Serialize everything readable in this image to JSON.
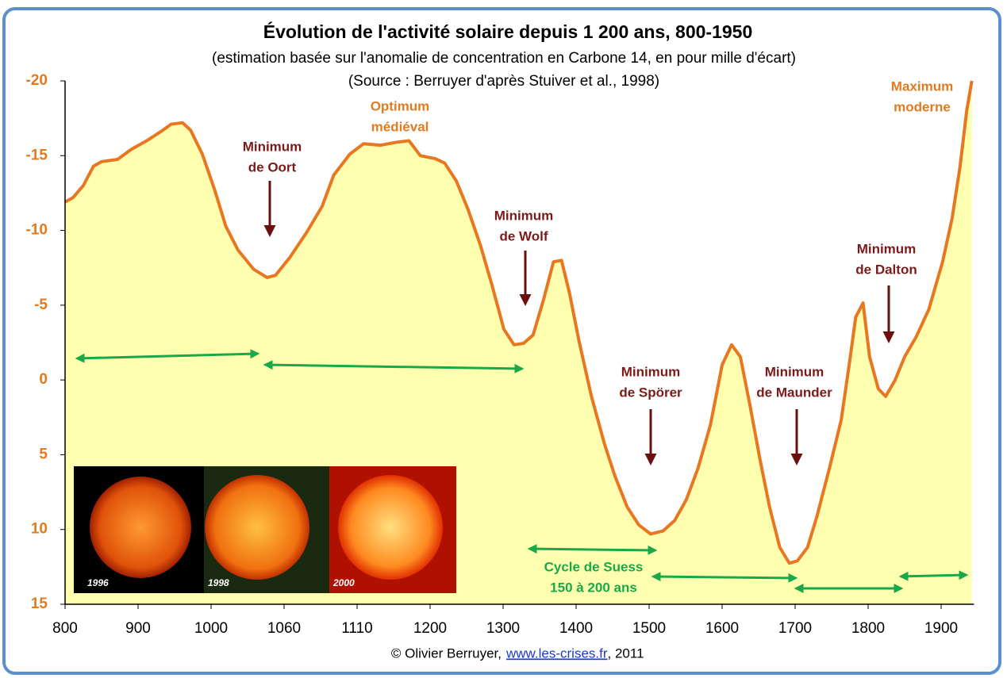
{
  "chart_data": {
    "type": "area",
    "title": "Évolution de l'activité solaire depuis 1 200 ans, 800-1950",
    "subtitle": "(estimation basée sur l'anomalie de concentration en Carbone 14, en pour mille d'écart)",
    "source": "(Source : Berruyer d'après Stuiver et al., 1998)",
    "x": [
      800,
      811,
      825,
      839,
      850,
      872,
      890,
      912,
      934,
      945,
      961,
      972,
      988,
      1003,
      1012,
      1022,
      1035,
      1046,
      1053,
      1064,
      1075,
      1086,
      1094,
      1105,
      1118,
      1139,
      1159,
      1174,
      1188,
      1207,
      1220,
      1236,
      1252,
      1269,
      1285,
      1301,
      1315,
      1328,
      1341,
      1355,
      1369,
      1380,
      1391,
      1404,
      1421,
      1439,
      1453,
      1470,
      1486,
      1502,
      1519,
      1535,
      1551,
      1567,
      1584,
      1600,
      1613,
      1625,
      1638,
      1652,
      1665,
      1679,
      1692,
      1703,
      1717,
      1730,
      1747,
      1763,
      1774,
      1783,
      1793,
      1802,
      1814,
      1824,
      1837,
      1850,
      1866,
      1883,
      1902,
      1915,
      1926,
      1935,
      1942
    ],
    "series": [
      {
        "color": "#e87722",
        "fill": "#ffffb0",
        "values": [
          -11.9,
          -12.2,
          -13,
          -14.3,
          -14.6,
          -14.75,
          -15.4,
          -16,
          -16.7,
          -17.1,
          -17.2,
          -16.7,
          -15.1,
          -12.7,
          -10.3,
          -8.7,
          -7.4,
          -6.85,
          -7,
          -8.2,
          -9.8,
          -11.6,
          -13.7,
          -15.1,
          -15.8,
          -15.7,
          -15.9,
          -16,
          -15,
          -14.8,
          -14.5,
          -13.3,
          -11.4,
          -9,
          -6.3,
          -3.4,
          -2.35,
          -2.45,
          -3,
          -5.3,
          -7.9,
          -8,
          -5.8,
          -2.6,
          1.1,
          4.3,
          6.4,
          8.5,
          9.7,
          10.3,
          10.1,
          9.4,
          8,
          5.9,
          3,
          -1,
          -2.35,
          -1.55,
          1.65,
          5.35,
          8.5,
          11.2,
          12.25,
          12.1,
          11.2,
          9.1,
          5.9,
          2.7,
          -1,
          -4.2,
          -5.15,
          -1.55,
          0.6,
          1.1,
          0,
          -1.55,
          -2.9,
          -4.7,
          -7.9,
          -10.8,
          -14.3,
          -18,
          -20
        ]
      }
    ],
    "xlim": [
      800,
      1945
    ],
    "xticks": [
      800,
      900,
      1000,
      1060,
      1110,
      1200,
      1300,
      1400,
      1500,
      1600,
      1700,
      1800,
      1900
    ],
    "ylim": [
      -20,
      15
    ],
    "y_inverted": true,
    "yticks": [
      -20,
      -15,
      -10,
      -5,
      0,
      5,
      10,
      15
    ],
    "annotations": [
      {
        "lines": [
          "Minimum",
          "de Oort"
        ],
        "color": "#7b1a1a"
      },
      {
        "lines": [
          "Optimum",
          "médiéval"
        ],
        "color": "#e07b20"
      },
      {
        "lines": [
          "Minimum",
          "de Wolf"
        ],
        "color": "#7b1a1a"
      },
      {
        "lines": [
          "Minimum",
          "de Spörer"
        ],
        "color": "#7b1a1a"
      },
      {
        "lines": [
          "Minimum",
          "de Maunder"
        ],
        "color": "#7b1a1a"
      },
      {
        "lines": [
          "Minimum",
          "de Dalton"
        ],
        "color": "#7b1a1a"
      },
      {
        "lines": [
          "Maximum",
          "moderne"
        ],
        "color": "#e07b20"
      },
      {
        "lines": [
          "Cycle de Suess",
          "150 à 200 ans"
        ],
        "color": "#1aa84a"
      }
    ],
    "image_labels": [
      "1996",
      "1998",
      "2000"
    ],
    "footer": {
      "prefix": "© Olivier Berruyer,",
      "link": "www.les-crises.fr",
      "suffix": ",  2011"
    }
  }
}
